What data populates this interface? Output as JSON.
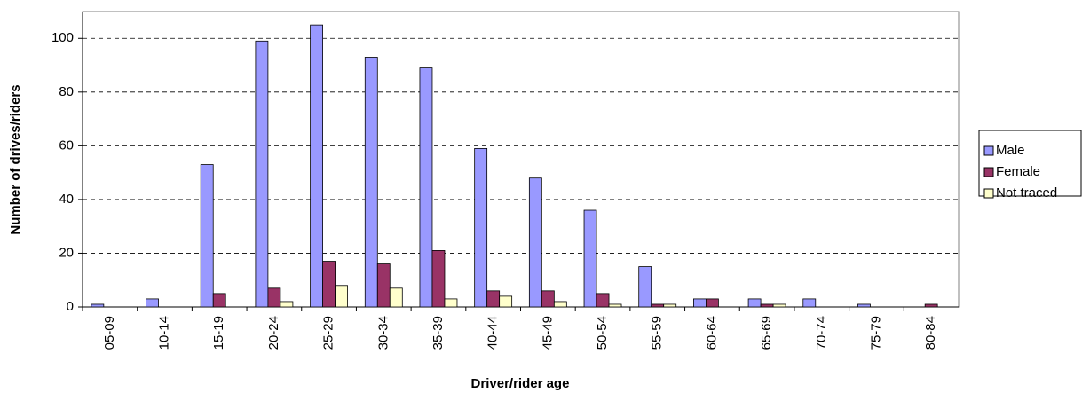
{
  "chart_data": {
    "type": "bar",
    "x_label": "Driver/rider age",
    "y_label": "Number of drives/riders",
    "categories": [
      "05-09",
      "10-14",
      "15-19",
      "20-24",
      "25-29",
      "30-34",
      "35-39",
      "40-44",
      "45-49",
      "50-54",
      "55-59",
      "60-64",
      "65-69",
      "70-74",
      "75-79",
      "80-84"
    ],
    "series": [
      {
        "name": "Male",
        "color": "#9999ff",
        "values": [
          1,
          3,
          53,
          99,
          105,
          93,
          89,
          59,
          48,
          36,
          15,
          3,
          3,
          3,
          1,
          0
        ]
      },
      {
        "name": "Female",
        "color": "#993366",
        "values": [
          0,
          0,
          5,
          7,
          17,
          16,
          21,
          6,
          6,
          5,
          1,
          3,
          1,
          0,
          0,
          1
        ]
      },
      {
        "name": "Not traced",
        "color": "#ffffcc",
        "values": [
          0,
          0,
          0,
          2,
          8,
          7,
          3,
          4,
          2,
          1,
          1,
          0,
          1,
          0,
          0,
          0
        ]
      }
    ],
    "ylim": [
      0,
      110
    ],
    "yticks": [
      0,
      20,
      40,
      60,
      80,
      100
    ],
    "grid": true,
    "legend": "right"
  }
}
